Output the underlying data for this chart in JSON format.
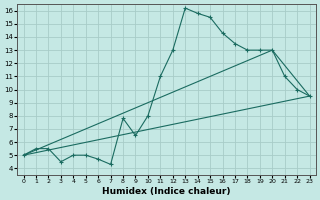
{
  "xlabel": "Humidex (Indice chaleur)",
  "bg_color": "#c5e8e4",
  "grid_color": "#a8ccc8",
  "line_color": "#1a6b60",
  "xlim": [
    -0.5,
    23.5
  ],
  "ylim": [
    3.5,
    16.5
  ],
  "xticks": [
    0,
    1,
    2,
    3,
    4,
    5,
    6,
    7,
    8,
    9,
    10,
    11,
    12,
    13,
    14,
    15,
    16,
    17,
    18,
    19,
    20,
    21,
    22,
    23
  ],
  "yticks": [
    4,
    5,
    6,
    7,
    8,
    9,
    10,
    11,
    12,
    13,
    14,
    15,
    16
  ],
  "line1_x": [
    0,
    1,
    2,
    3,
    4,
    5,
    6,
    7,
    8,
    9,
    10,
    11,
    12,
    13,
    14,
    15,
    16,
    17,
    18,
    19,
    20,
    21,
    22,
    23
  ],
  "line1_y": [
    5.0,
    5.5,
    5.5,
    4.5,
    5.0,
    5.0,
    4.7,
    4.3,
    7.8,
    6.5,
    8.0,
    11.0,
    13.0,
    16.2,
    15.8,
    15.5,
    14.3,
    13.5,
    13.0,
    13.0,
    13.0,
    11.0,
    10.0,
    9.5
  ],
  "line2_x": [
    0,
    23
  ],
  "line2_y": [
    5.0,
    9.5
  ],
  "line3_x": [
    0,
    20,
    23
  ],
  "line3_y": [
    5.0,
    13.0,
    9.5
  ]
}
